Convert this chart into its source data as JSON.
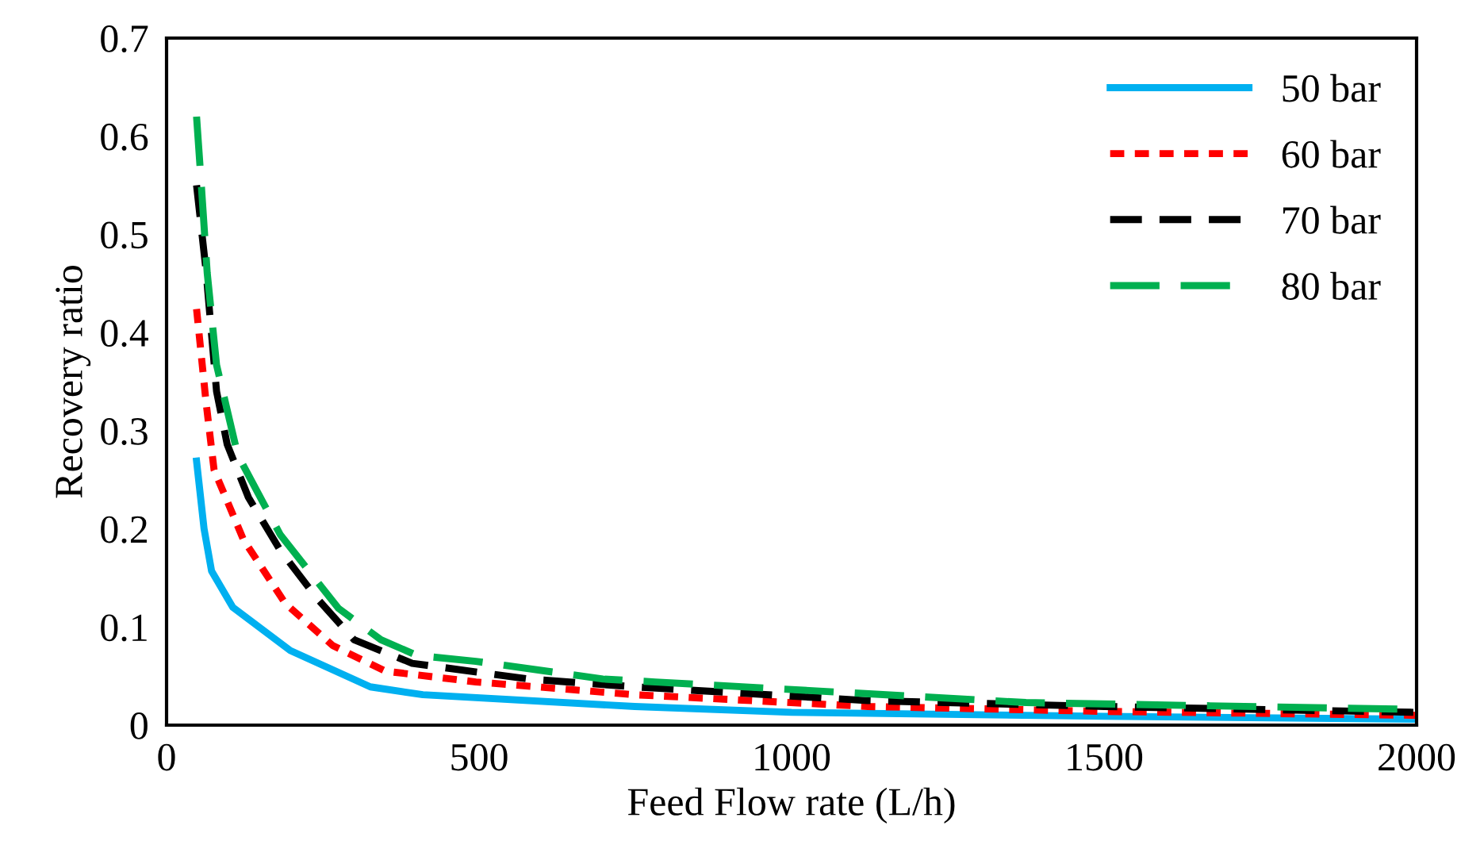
{
  "chart_data": {
    "type": "line",
    "xlabel": "Feed Flow rate (L/h)",
    "ylabel": "Recovery ratio",
    "xlim": [
      0,
      2000
    ],
    "xticks": [
      0,
      500,
      1000,
      1500,
      2000
    ],
    "ylim": [
      0,
      0.7
    ],
    "yticks": [
      0,
      0.1,
      0.2,
      0.3,
      0.4,
      0.5,
      0.6,
      0.7
    ],
    "grid": false,
    "legend": "top right",
    "marker": "none",
    "series": [
      {
        "name": "50 bar",
        "color": "#00b0f0",
        "line_style": "solid",
        "x": [
          48,
          60,
          72,
          106,
          198,
          326,
          410,
          749,
          1000,
          1500,
          2000
        ],
        "values": [
          0.269,
          0.2,
          0.157,
          0.12,
          0.076,
          0.039,
          0.031,
          0.019,
          0.013,
          0.009,
          0.006
        ]
      },
      {
        "name": "60 bar",
        "color": "#ff0000",
        "line_style": "dotted",
        "x": [
          48,
          63,
          76,
          123,
          190,
          266,
          350,
          495,
          749,
          1122,
          1500,
          2000
        ],
        "values": [
          0.424,
          0.33,
          0.26,
          0.189,
          0.124,
          0.081,
          0.055,
          0.044,
          0.031,
          0.019,
          0.014,
          0.01
        ]
      },
      {
        "name": "70 bar",
        "color": "#000000",
        "line_style": "dashed",
        "x": [
          48,
          63,
          68,
          80,
          97,
          131,
          182,
          241,
          300,
          393,
          579,
          749,
          1122,
          1500,
          2000
        ],
        "values": [
          0.55,
          0.464,
          0.427,
          0.34,
          0.286,
          0.232,
          0.178,
          0.129,
          0.087,
          0.063,
          0.047,
          0.039,
          0.025,
          0.019,
          0.013
        ]
      },
      {
        "name": "80 bar",
        "color": "#00b050",
        "line_style": "dashed",
        "x": [
          48,
          55,
          65,
          80,
          114,
          182,
          275,
          343,
          401,
          495,
          698,
          782,
          1375,
          2000
        ],
        "values": [
          0.62,
          0.556,
          0.461,
          0.367,
          0.275,
          0.194,
          0.119,
          0.087,
          0.071,
          0.065,
          0.047,
          0.044,
          0.023,
          0.016
        ]
      }
    ]
  }
}
